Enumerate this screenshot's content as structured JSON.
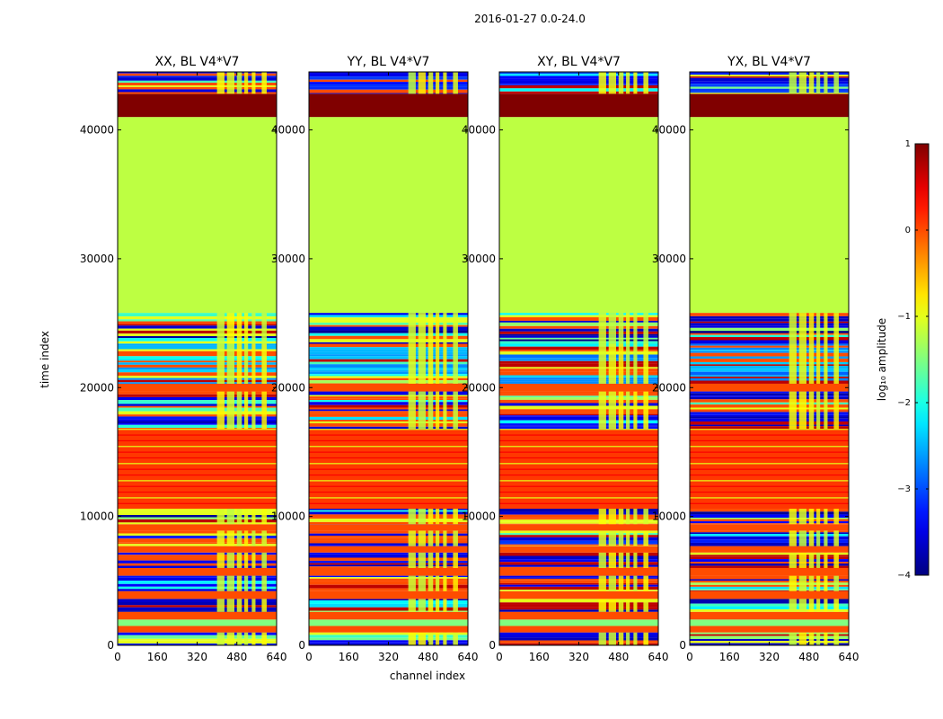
{
  "figure": {
    "suptitle": "2016-01-27 0.0-24.0"
  },
  "chart_data": {
    "type": "heatmap",
    "title": "2016-01-27 0.0-24.0",
    "xlabel": "channel index",
    "ylabel": "time index",
    "xlim": [
      0,
      640
    ],
    "ylim": [
      0,
      44500
    ],
    "xticks": [
      "0",
      "160",
      "320",
      "480",
      "640"
    ],
    "yticks": [
      "0",
      "10000",
      "20000",
      "30000",
      "40000"
    ],
    "ytick_values": [
      0,
      10000,
      20000,
      30000,
      40000
    ],
    "xtick_values": [
      0,
      160,
      320,
      480,
      640
    ],
    "panels": [
      {
        "title": "XX, BL V4*V7"
      },
      {
        "title": "YY, BL V4*V7"
      },
      {
        "title": "XY, BL V4*V7"
      },
      {
        "title": "YX, BL V4*V7"
      }
    ],
    "colorbar": {
      "label": "log₁₀ amplitude",
      "range": [
        -4,
        1
      ],
      "ticks": [
        "1",
        "0",
        "−1",
        "−2",
        "−3",
        "−4"
      ],
      "tick_values": [
        1,
        0,
        -1,
        -2,
        -3,
        -4
      ],
      "colormap": "jet"
    },
    "bands": [
      {
        "t0": 0,
        "t1": 1000,
        "value": -3.4,
        "mixed": true
      },
      {
        "t0": 1000,
        "t1": 1500,
        "value": 0.0,
        "mixed": false
      },
      {
        "t0": 1500,
        "t1": 2000,
        "value": -1.5,
        "mixed": false
      },
      {
        "t0": 2000,
        "t1": 2600,
        "value": 0.0,
        "mixed": false
      },
      {
        "t0": 2600,
        "t1": 3600,
        "value": -3.6,
        "mixed": true
      },
      {
        "t0": 3600,
        "t1": 4200,
        "value": 0.0,
        "mixed": false
      },
      {
        "t0": 4200,
        "t1": 5400,
        "value": -3.5,
        "mixed": true
      },
      {
        "t0": 5400,
        "t1": 6000,
        "value": 0.0,
        "mixed": false
      },
      {
        "t0": 6000,
        "t1": 7200,
        "value": -3.5,
        "mixed": true
      },
      {
        "t0": 7200,
        "t1": 7700,
        "value": 0.0,
        "mixed": false
      },
      {
        "t0": 7700,
        "t1": 8900,
        "value": -3.4,
        "mixed": true
      },
      {
        "t0": 8900,
        "t1": 9400,
        "value": 0.0,
        "mixed": false
      },
      {
        "t0": 9400,
        "t1": 10600,
        "value": -3.6,
        "mixed": true
      },
      {
        "t0": 10600,
        "t1": 16800,
        "value": 0.1,
        "mixed": false,
        "striped": true
      },
      {
        "t0": 16800,
        "t1": 19700,
        "value": -3.5,
        "mixed": true
      },
      {
        "t0": 19700,
        "t1": 20300,
        "value": 0.0,
        "mixed": false
      },
      {
        "t0": 20300,
        "t1": 23400,
        "value": -2.6,
        "mixed": true
      },
      {
        "t0": 23400,
        "t1": 25800,
        "value": -3.7,
        "mixed": true
      },
      {
        "t0": 25800,
        "t1": 41000,
        "value": -1.2,
        "mixed": false
      },
      {
        "t0": 41000,
        "t1": 42800,
        "value": 1.0,
        "mixed": false
      },
      {
        "t0": 42800,
        "t1": 44500,
        "value": -3.3,
        "mixed": true
      }
    ]
  }
}
